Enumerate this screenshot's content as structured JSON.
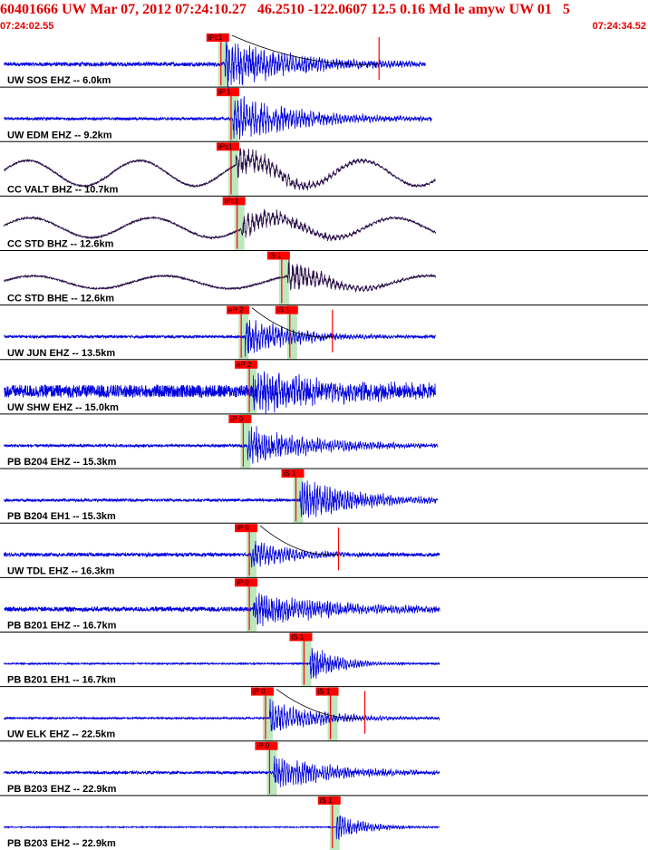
{
  "header": {
    "title": "60401666 UW Mar 07, 2012 07:24:10.27   46.2510 -122.0607 12.5 0.16 Md le amyw UW 01   5",
    "start_time": "07:24:02.55",
    "end_time": "07:24:34.52"
  },
  "colors": {
    "title": "#e00000",
    "pick_flag": "#ff0000",
    "pick_line": "#ff0000",
    "highlight": "#bde8bd",
    "trace_short_period": "#0000dd",
    "trace_broadband": "#2a1048",
    "separator": "#000000"
  },
  "chart_data": {
    "type": "line",
    "x_unit": "time",
    "x_range": [
      "07:24:02.55",
      "07:24:34.52"
    ],
    "traces": [
      {
        "label": "UW SOS EHZ -- 6.0km",
        "p_pick": {
          "label": "iPc1",
          "t": 10.9
        },
        "s_pick": null,
        "coda_end": 18.7,
        "onset": 11.1,
        "noise": 2.2,
        "peak": 26,
        "decay": 3.5,
        "freq": 7.0,
        "end": 21.0,
        "long_period": {
          "amp": 0,
          "period": 0
        },
        "color": "#0000dd"
      },
      {
        "label": "UW EDM EHZ -- 9.2km",
        "p_pick": {
          "label": "iP 1",
          "t": 11.4
        },
        "s_pick": null,
        "coda_end": null,
        "onset": 11.5,
        "noise": 1.5,
        "peak": 24,
        "decay": 3.5,
        "freq": 7.0,
        "end": 21.3,
        "long_period": {
          "amp": 0,
          "period": 0
        },
        "color": "#0000dd"
      },
      {
        "label": "CC VALT BHZ -- 10.7km",
        "p_pick": {
          "label": "iPc1",
          "t": 11.4
        },
        "s_pick": null,
        "coda_end": null,
        "onset": 11.6,
        "noise": 1.0,
        "peak": 16,
        "decay": 3.0,
        "freq": 5.0,
        "end": 21.5,
        "long_period": {
          "amp": 14,
          "period": 5.5
        },
        "color": "#2a1048"
      },
      {
        "label": "CC STD BHZ -- 12.6km",
        "p_pick": {
          "label": "iPc1",
          "t": 11.7
        },
        "s_pick": null,
        "coda_end": null,
        "onset": 11.9,
        "noise": 1.0,
        "peak": 14,
        "decay": 3.0,
        "freq": 5.0,
        "end": 21.5,
        "long_period": {
          "amp": 11,
          "period": 6.0
        },
        "color": "#2a1048"
      },
      {
        "label": "CC STD BHE -- 12.6km",
        "p_pick": null,
        "s_pick": {
          "label": "iS 1",
          "t": 13.9
        },
        "coda_end": null,
        "onset": 14.2,
        "noise": 1.0,
        "peak": 18,
        "decay": 2.0,
        "freq": 5.0,
        "end": 21.5,
        "long_period": {
          "amp": 7,
          "period": 6.5
        },
        "color": "#2a1048"
      },
      {
        "label": "UW JUN EHZ -- 13.5km",
        "p_pick": {
          "label": "eP 2",
          "t": 11.9
        },
        "s_pick": {
          "label": "iS 1",
          "t": 14.3
        },
        "coda_end": 16.4,
        "onset": 12.1,
        "noise": 1.5,
        "peak": 20,
        "decay": 2.5,
        "freq": 7.0,
        "end": 21.5,
        "long_period": {
          "amp": 0,
          "period": 0
        },
        "color": "#0000dd"
      },
      {
        "label": "UW SHW EHZ -- 15.0km",
        "p_pick": {
          "label": "eP 2",
          "t": 12.3
        },
        "s_pick": null,
        "coda_end": null,
        "onset": 12.5,
        "noise": 7.0,
        "peak": 22,
        "decay": 4.0,
        "freq": 7.0,
        "end": 21.5,
        "long_period": {
          "amp": 0,
          "period": 0
        },
        "color": "#0000dd"
      },
      {
        "label": "PB B204 EHZ -- 15.3km",
        "p_pick": {
          "label": "iP 0",
          "t": 12.0
        },
        "s_pick": null,
        "coda_end": null,
        "onset": 12.2,
        "noise": 1.5,
        "peak": 20,
        "decay": 3.5,
        "freq": 8.0,
        "end": 21.6,
        "long_period": {
          "amp": 0,
          "period": 0
        },
        "color": "#0000dd"
      },
      {
        "label": "PB B204 EH1 -- 15.3km",
        "p_pick": null,
        "s_pick": {
          "label": "iS 1",
          "t": 14.6
        },
        "coda_end": null,
        "onset": 14.8,
        "noise": 1.5,
        "peak": 22,
        "decay": 3.0,
        "freq": 8.0,
        "end": 21.6,
        "long_period": {
          "amp": 0,
          "period": 0
        },
        "color": "#0000dd"
      },
      {
        "label": "UW TDL EHZ -- 16.3km",
        "p_pick": {
          "label": "iP 0",
          "t": 12.3
        },
        "s_pick": null,
        "coda_end": 16.7,
        "onset": 12.4,
        "noise": 2.0,
        "peak": 16,
        "decay": 2.0,
        "freq": 7.0,
        "end": 21.7,
        "long_period": {
          "amp": 0,
          "period": 0
        },
        "color": "#0000dd"
      },
      {
        "label": "PB B201 EHZ -- 16.7km",
        "p_pick": {
          "label": "iP 0",
          "t": 12.3
        },
        "s_pick": null,
        "coda_end": null,
        "onset": 12.5,
        "noise": 2.5,
        "peak": 18,
        "decay": 4.0,
        "freq": 8.0,
        "end": 21.7,
        "long_period": {
          "amp": 0,
          "period": 0
        },
        "color": "#0000dd"
      },
      {
        "label": "PB B201 EH1 -- 16.7km",
        "p_pick": null,
        "s_pick": {
          "label": "iS 1",
          "t": 15.0
        },
        "coda_end": null,
        "onset": 15.3,
        "noise": 0.8,
        "peak": 18,
        "decay": 1.5,
        "freq": 8.0,
        "end": 21.7,
        "long_period": {
          "amp": 0,
          "period": 0
        },
        "color": "#0000dd"
      },
      {
        "label": "UW ELK EHZ -- 22.5km",
        "p_pick": {
          "label": "iP 0",
          "t": 13.1
        },
        "s_pick": {
          "label": "iS 1",
          "t": 16.3
        },
        "coda_end": 18.0,
        "onset": 13.3,
        "noise": 1.0,
        "peak": 18,
        "decay": 2.5,
        "freq": 7.0,
        "end": 21.7,
        "long_period": {
          "amp": 0,
          "period": 0
        },
        "color": "#0000dd"
      },
      {
        "label": "PB B203 EHZ -- 22.9km",
        "p_pick": {
          "label": "iP 0",
          "t": 13.3
        },
        "s_pick": null,
        "coda_end": null,
        "onset": 13.5,
        "noise": 1.5,
        "peak": 18,
        "decay": 3.0,
        "freq": 8.0,
        "end": 21.7,
        "long_period": {
          "amp": 0,
          "period": 0
        },
        "color": "#0000dd"
      },
      {
        "label": "PB B203 EH2 -- 22.9km",
        "p_pick": null,
        "s_pick": {
          "label": "iS 1",
          "t": 16.4
        },
        "coda_end": null,
        "onset": 16.6,
        "noise": 0.6,
        "peak": 14,
        "decay": 1.5,
        "freq": 8.0,
        "end": 21.7,
        "long_period": {
          "amp": 0,
          "period": 0
        },
        "color": "#0000dd"
      }
    ]
  }
}
